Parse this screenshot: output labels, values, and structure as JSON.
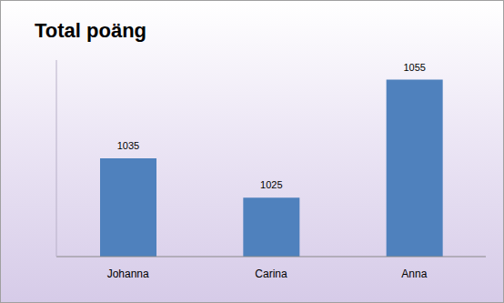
{
  "chart_data": {
    "type": "bar",
    "title": "Total poäng",
    "categories": [
      "Johanna",
      "Carina",
      "Anna"
    ],
    "values": [
      1035,
      1025,
      1055
    ],
    "color": "#4f81bd",
    "ylim": [
      1010,
      1060
    ],
    "data_labels": true,
    "tick_labels": "x"
  }
}
